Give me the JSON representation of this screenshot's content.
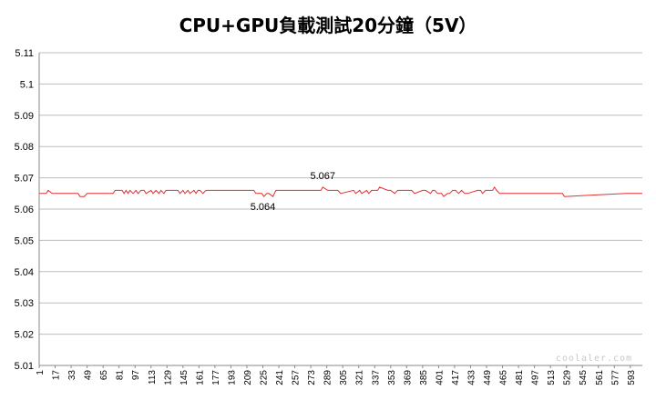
{
  "chart_data": {
    "type": "line",
    "title": "CPU+GPU負載測試20分鐘（5V）",
    "ylim": [
      5.01,
      5.11
    ],
    "yticks": [
      "5.11",
      "5.1",
      "5.09",
      "5.08",
      "5.07",
      "5.06",
      "5.05",
      "5.04",
      "5.03",
      "5.02",
      "5.01"
    ],
    "xlim": [
      1,
      605
    ],
    "xticks": [
      1,
      17,
      33,
      49,
      65,
      81,
      97,
      113,
      129,
      145,
      161,
      177,
      193,
      209,
      225,
      241,
      257,
      273,
      289,
      305,
      321,
      337,
      353,
      369,
      385,
      401,
      417,
      433,
      449,
      465,
      481,
      497,
      513,
      529,
      545,
      561,
      577,
      593
    ],
    "grid": "horizontal",
    "color": "#e03030",
    "series": [
      {
        "x": [
          1,
          8,
          10,
          14,
          16,
          40,
          42,
          46,
          49,
          75,
          77,
          84,
          86,
          88,
          90,
          92,
          95,
          98,
          100,
          103,
          106,
          108,
          113,
          115,
          118,
          121,
          123,
          126,
          128,
          140,
          142,
          145,
          147,
          150,
          152,
          156,
          158,
          160,
          162,
          165,
          168,
          216,
          218,
          224,
          226,
          229,
          231,
          235,
          238,
          255,
          257,
          283,
          285,
          290,
          292,
          300,
          303,
          316,
          318,
          322,
          324,
          329,
          331,
          334,
          336,
          340,
          342,
          350,
          353,
          357,
          360,
          374,
          377,
          385,
          388,
          393,
          395,
          397,
          400,
          404,
          406,
          410,
          412,
          415,
          418,
          421,
          424,
          427,
          430,
          440,
          443,
          445,
          448,
          455,
          457,
          459,
          462,
          504,
          506,
          510,
          512,
          525,
          527,
          589,
          591,
          605
        ],
        "y": [
          5.065,
          5.065,
          5.066,
          5.065,
          5.065,
          5.065,
          5.064,
          5.064,
          5.065,
          5.065,
          5.066,
          5.066,
          5.065,
          5.066,
          5.065,
          5.066,
          5.065,
          5.066,
          5.065,
          5.066,
          5.066,
          5.065,
          5.066,
          5.065,
          5.066,
          5.065,
          5.066,
          5.065,
          5.066,
          5.066,
          5.065,
          5.066,
          5.065,
          5.066,
          5.065,
          5.066,
          5.065,
          5.066,
          5.066,
          5.065,
          5.066,
          5.066,
          5.065,
          5.065,
          5.064,
          5.065,
          5.065,
          5.064,
          5.066,
          5.066,
          5.066,
          5.066,
          5.067,
          5.066,
          5.066,
          5.066,
          5.065,
          5.066,
          5.065,
          5.066,
          5.065,
          5.066,
          5.065,
          5.066,
          5.066,
          5.066,
          5.067,
          5.066,
          5.066,
          5.065,
          5.066,
          5.066,
          5.065,
          5.066,
          5.066,
          5.065,
          5.066,
          5.066,
          5.065,
          5.065,
          5.064,
          5.065,
          5.065,
          5.066,
          5.066,
          5.065,
          5.066,
          5.065,
          5.065,
          5.066,
          5.066,
          5.065,
          5.066,
          5.066,
          5.067,
          5.066,
          5.065,
          5.065,
          5.065,
          5.065,
          5.065,
          5.065,
          5.064,
          5.065,
          5.065,
          5.065
        ]
      }
    ],
    "annotations": [
      {
        "text": "5.064",
        "x": 225,
        "y": 5.064
      },
      {
        "text": "5.067",
        "x": 285,
        "y": 5.067
      }
    ]
  },
  "watermark": "coolaler.com"
}
